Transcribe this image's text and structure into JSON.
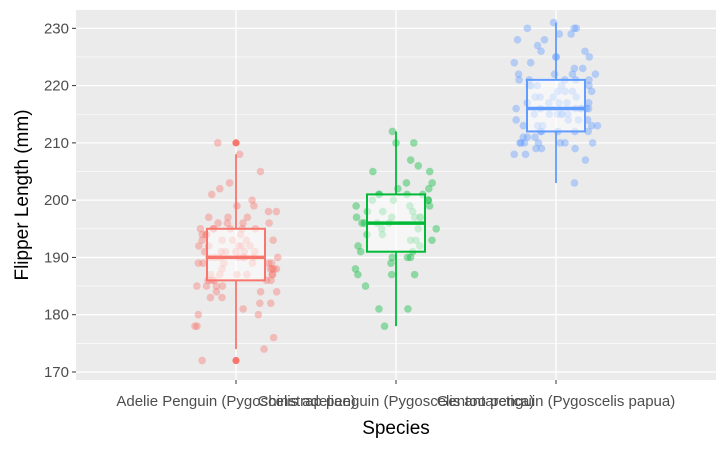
{
  "chart_data": {
    "type": "boxplot",
    "xlabel": "Species",
    "ylabel": "Flipper Length (mm)",
    "ylim": [
      168.6,
      233.2
    ],
    "y_ticks": [
      170,
      180,
      190,
      200,
      210,
      220,
      230
    ],
    "grid": true,
    "legend": "none",
    "categories": [
      "Adelie Penguin (Pygoscelis adeliae)",
      "Chinstrap penguin (Pygoscelis antarctica)",
      "Gentoo penguin (Pygoscelis papua)"
    ],
    "series": [
      {
        "color": "#F8766D",
        "box": {
          "min": 174,
          "q1": 186,
          "median": 190,
          "q3": 195,
          "max": 208
        },
        "outliers": [
          172,
          210
        ],
        "points": [
          172,
          174,
          176,
          178,
          178,
          180,
          180,
          181,
          182,
          182,
          183,
          183,
          184,
          184,
          184,
          185,
          185,
          185,
          185,
          186,
          186,
          186,
          186,
          186,
          187,
          187,
          187,
          187,
          187,
          187,
          188,
          188,
          188,
          188,
          188,
          189,
          189,
          189,
          189,
          189,
          189,
          190,
          190,
          190,
          190,
          190,
          190,
          190,
          190,
          191,
          191,
          191,
          191,
          191,
          191,
          192,
          192,
          192,
          192,
          192,
          193,
          193,
          193,
          193,
          193,
          194,
          194,
          194,
          194,
          195,
          195,
          195,
          195,
          195,
          195,
          196,
          196,
          196,
          196,
          197,
          197,
          197,
          198,
          198,
          199,
          199,
          200,
          201,
          202,
          203,
          205,
          208,
          210
        ]
      },
      {
        "color": "#00BA38",
        "box": {
          "min": 178,
          "q1": 191,
          "median": 196,
          "q3": 201,
          "max": 212
        },
        "outliers": [],
        "points": [
          178,
          181,
          181,
          185,
          187,
          187,
          187,
          188,
          189,
          190,
          190,
          190,
          191,
          191,
          192,
          192,
          193,
          193,
          193,
          194,
          194,
          195,
          195,
          195,
          196,
          196,
          196,
          196,
          197,
          197,
          197,
          197,
          197,
          198,
          198,
          198,
          199,
          199,
          199,
          200,
          200,
          200,
          200,
          201,
          201,
          201,
          201,
          202,
          202,
          203,
          203,
          205,
          205,
          206,
          207,
          210,
          210,
          212
        ]
      },
      {
        "color": "#619CFF",
        "box": {
          "min": 203,
          "q1": 212,
          "median": 216,
          "q3": 221,
          "max": 231
        },
        "outliers": [],
        "points": [
          203,
          207,
          208,
          208,
          209,
          209,
          209,
          210,
          210,
          210,
          210,
          210,
          210,
          210,
          211,
          211,
          211,
          212,
          212,
          212,
          212,
          212,
          213,
          213,
          213,
          213,
          213,
          214,
          214,
          214,
          214,
          215,
          215,
          215,
          215,
          215,
          215,
          216,
          216,
          216,
          216,
          216,
          216,
          216,
          217,
          217,
          217,
          217,
          217,
          218,
          218,
          218,
          218,
          219,
          219,
          219,
          219,
          220,
          220,
          220,
          220,
          220,
          221,
          221,
          221,
          221,
          221,
          222,
          222,
          222,
          222,
          223,
          223,
          224,
          224,
          225,
          225,
          225,
          226,
          226,
          227,
          228,
          228,
          229,
          229,
          230,
          230,
          230,
          231
        ]
      }
    ]
  }
}
